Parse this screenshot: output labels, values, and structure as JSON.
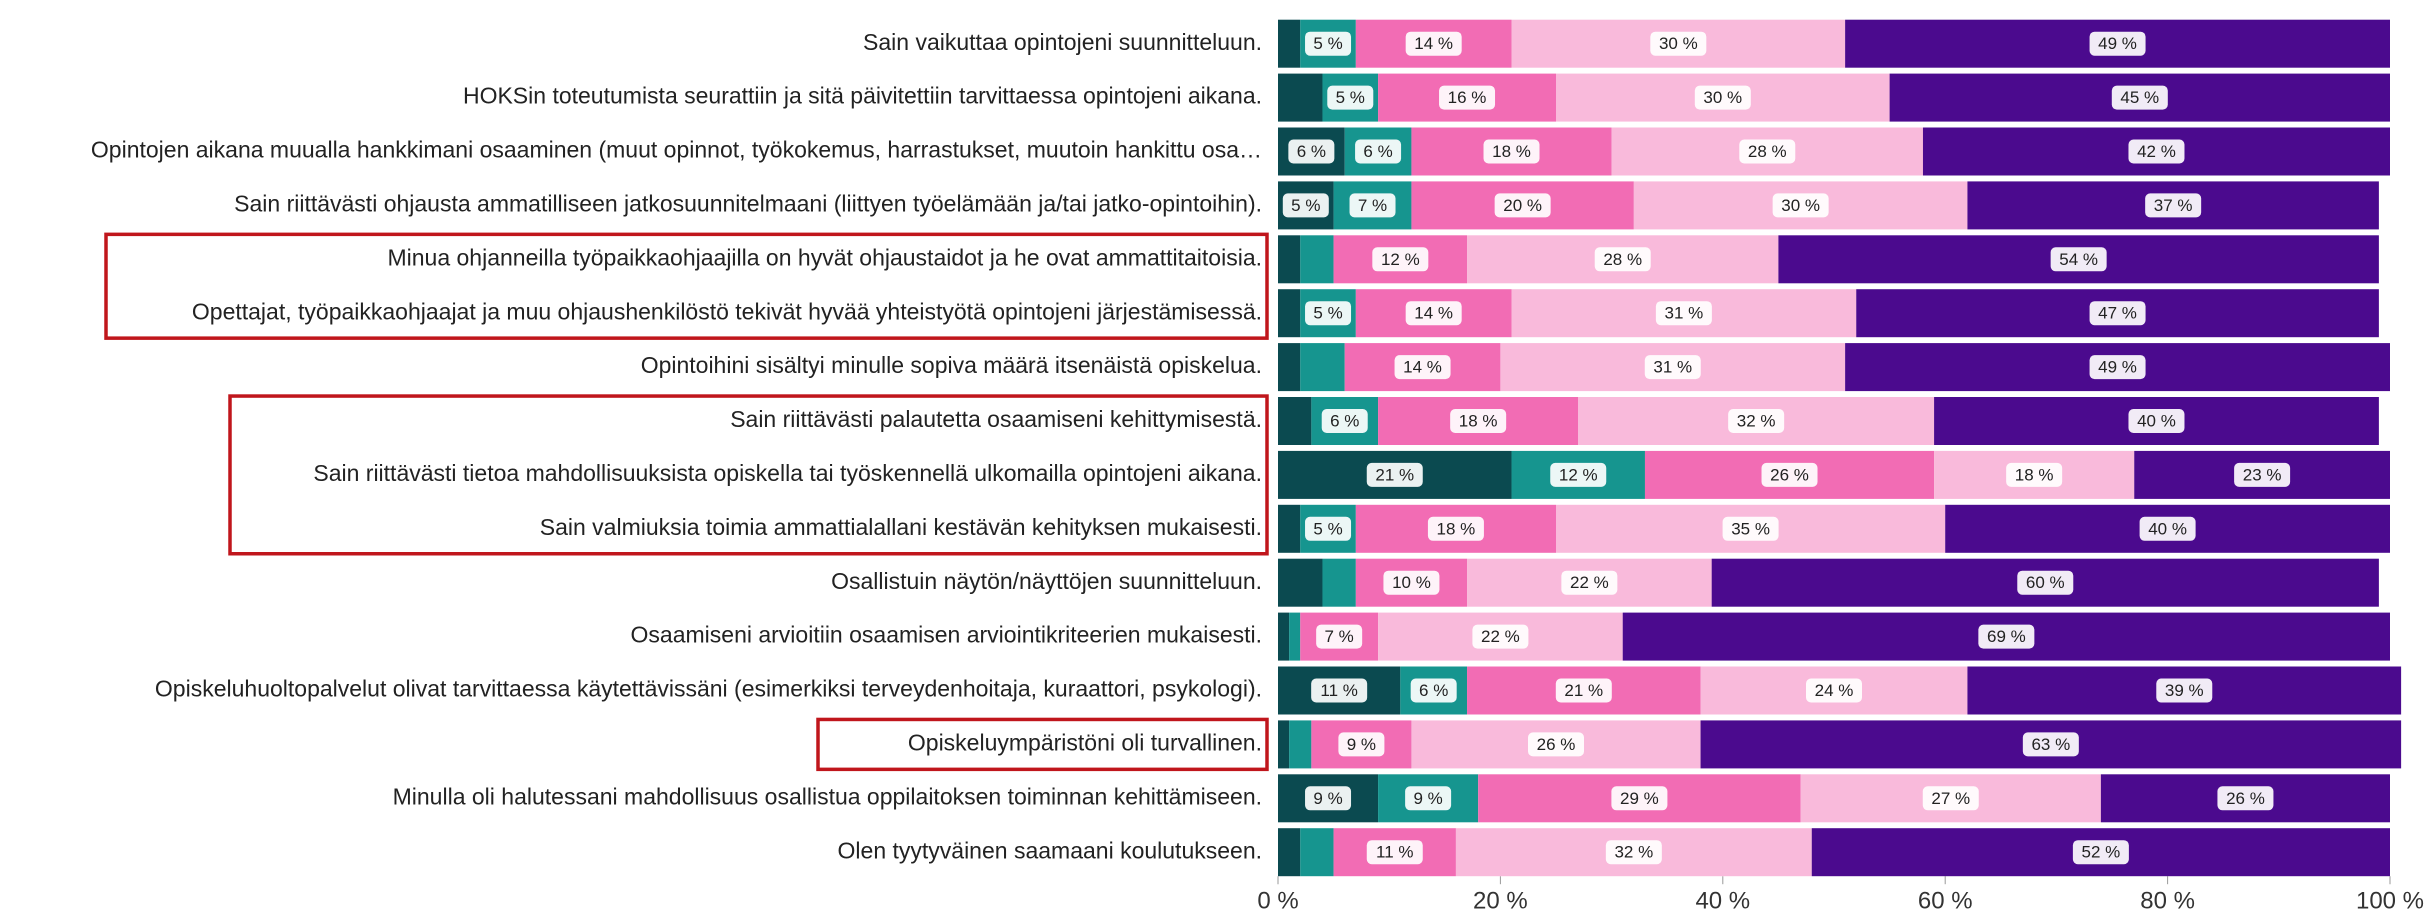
{
  "chart_data": {
    "type": "stacked-barh",
    "categories": [
      "Sain vaikuttaa opintojeni suunnitteluun.",
      "HOKSin toteutumista seurattiin ja sitä päivitettiin tarvittaessa opintojeni aikana.",
      "Opintojen aikana muualla hankkimani osaaminen (muut opinnot, työkokemus, harrastukset, muutoin hankittu osa…",
      "Sain riittävästi ohjausta ammatilliseen jatkosuunnitelmaani (liittyen työelämään ja/tai jatko-opintoihin).",
      "Minua ohjanneilla työpaikkaohjaajilla on hyvät ohjaustaidot ja he ovat ammattitaitoisia.",
      "Opettajat, työpaikkaohjaajat ja muu ohjaushenkilöstö tekivät hyvää yhteistyötä opintojeni järjestämisessä.",
      "Opintoihini sisältyi minulle sopiva määrä itsenäistä opiskelua.",
      "Sain riittävästi palautetta osaamiseni kehittymisestä.",
      "Sain riittävästi tietoa mahdollisuuksista opiskella tai työskennellä ulkomailla opintojeni aikana.",
      "Sain valmiuksia toimia ammattialallani kestävän kehityksen mukaisesti.",
      "Osallistuin näytön/näyttöjen suunnitteluun.",
      "Osaamiseni arvioitiin osaamisen arviointikriteerien mukaisesti.",
      "Opiskeluhuoltopalvelut olivat tarvittaessa käytettävissäni (esimerkiksi terveydenhoitaja, kuraattori, psykologi).",
      "Opiskeluympäristöni oli turvallinen.",
      "Minulla oli halutessani mahdollisuus osallistua oppilaitoksen toiminnan kehittämiseen.",
      "Olen tyytyväinen saamaani koulutukseen."
    ],
    "series": [
      {
        "color": "#0b4a50",
        "values": [
          2,
          4,
          6,
          5,
          2,
          2,
          2,
          3,
          21,
          2,
          4,
          1,
          11,
          1,
          9,
          2
        ],
        "value_labels": [
          null,
          null,
          "6 %",
          "5 %",
          null,
          null,
          null,
          null,
          "21 %",
          null,
          null,
          null,
          "11 %",
          null,
          "9 %",
          null
        ]
      },
      {
        "color": "#16958f",
        "values": [
          5,
          5,
          6,
          7,
          3,
          5,
          4,
          6,
          12,
          5,
          3,
          1,
          6,
          2,
          9,
          3
        ],
        "value_labels": [
          "5 %",
          "5 %",
          "6 %",
          "7 %",
          null,
          "5 %",
          null,
          "6 %",
          "12 %",
          "5 %",
          null,
          null,
          "6 %",
          null,
          "9 %",
          null
        ]
      },
      {
        "color": "#f26cb4",
        "values": [
          14,
          16,
          18,
          20,
          12,
          14,
          14,
          18,
          26,
          18,
          10,
          7,
          21,
          9,
          29,
          11
        ],
        "value_labels": [
          "14 %",
          "16 %",
          "18 %",
          "20 %",
          "12 %",
          "14 %",
          "14 %",
          "18 %",
          "26 %",
          "18 %",
          "10 %",
          "7 %",
          "21 %",
          "9 %",
          "29 %",
          "11 %"
        ]
      },
      {
        "color": "#f9badb",
        "values": [
          30,
          30,
          28,
          30,
          28,
          31,
          31,
          32,
          18,
          35,
          22,
          22,
          24,
          26,
          27,
          32
        ],
        "value_labels": [
          "30 %",
          "30 %",
          "28 %",
          "30 %",
          "28 %",
          "31 %",
          "31 %",
          "32 %",
          "18 %",
          "35 %",
          "22 %",
          "22 %",
          "24 %",
          "26 %",
          "27 %",
          "32 %"
        ]
      },
      {
        "color": "#4b0a8e",
        "values": [
          49,
          45,
          42,
          37,
          54,
          47,
          49,
          40,
          23,
          40,
          60,
          69,
          39,
          63,
          26,
          52
        ],
        "value_labels": [
          "49 %",
          "45 %",
          "42 %",
          "37 %",
          "54 %",
          "47 %",
          "49 %",
          "40 %",
          "23 %",
          "40 %",
          "60 %",
          "69 %",
          "39 %",
          "63 %",
          "26 %",
          "52 %"
        ]
      }
    ],
    "xlim": [
      0,
      100
    ],
    "xticks": [
      {
        "value": 0,
        "label": "0 %"
      },
      {
        "value": 20,
        "label": "20 %"
      },
      {
        "value": 40,
        "label": "40 %"
      },
      {
        "value": 60,
        "label": "60 %"
      },
      {
        "value": 80,
        "label": "80 %"
      },
      {
        "value": 100,
        "label": "100 %"
      }
    ]
  }
}
